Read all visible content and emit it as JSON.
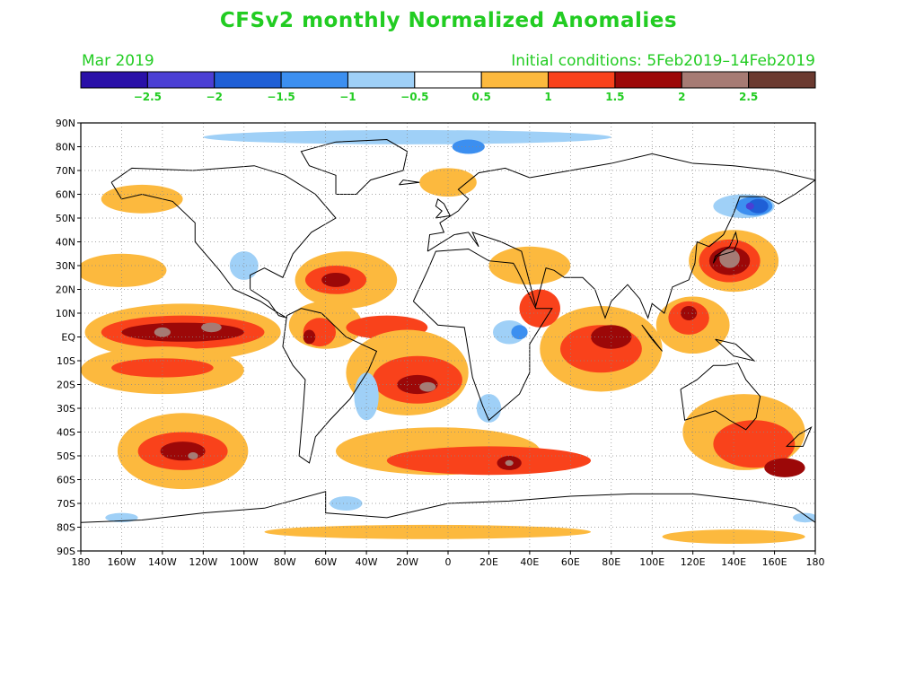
{
  "header": {
    "title": "CFSv2 monthly Normalized Anomalies",
    "month_label": "Mar 2019",
    "init_label": "Initial conditions: 5Feb2019–14Feb2019",
    "text_color": "#22cc22"
  },
  "colorbar": {
    "colors": [
      "#2a10a8",
      "#4b3fd4",
      "#1f5fd6",
      "#3c8ff0",
      "#9fd0f7",
      "#ffffff",
      "#fcb93e",
      "#f9421b",
      "#9c0808",
      "#a67b74",
      "#6b3a30"
    ],
    "labels": [
      "−2.5",
      "−2",
      "−1.5",
      "−1",
      "−0.5",
      "0.5",
      "1",
      "1.5",
      "2",
      "2.5"
    ]
  },
  "map": {
    "projection": "equirectangular",
    "lon_range": [
      -180,
      180
    ],
    "lat_range": [
      -90,
      90
    ],
    "lat_labels": [
      "90N",
      "80N",
      "70N",
      "60N",
      "50N",
      "40N",
      "30N",
      "20N",
      "10N",
      "EQ",
      "10S",
      "20S",
      "30S",
      "40S",
      "50S",
      "60S",
      "70S",
      "80S",
      "90S"
    ],
    "lon_labels": [
      "180",
      "160W",
      "140W",
      "120W",
      "100W",
      "80W",
      "60W",
      "40W",
      "20W",
      "0",
      "20E",
      "40E",
      "60E",
      "80E",
      "100E",
      "120E",
      "140E",
      "160E",
      "180"
    ],
    "gridlines": "dotted",
    "anomaly_regions": [
      {
        "lon": -130,
        "lat": 2,
        "rx": 48,
        "ry": 12,
        "level": 0.6
      },
      {
        "lon": -130,
        "lat": 2,
        "rx": 40,
        "ry": 7,
        "level": 1.2
      },
      {
        "lon": -130,
        "lat": 2,
        "rx": 30,
        "ry": 4,
        "level": 1.6
      },
      {
        "lon": -140,
        "lat": 2,
        "rx": 4,
        "ry": 2,
        "level": 2.2
      },
      {
        "lon": -116,
        "lat": 4,
        "rx": 5,
        "ry": 2,
        "level": 2.2
      },
      {
        "lon": -160,
        "lat": 28,
        "rx": 22,
        "ry": 7,
        "level": 0.6
      },
      {
        "lon": -140,
        "lat": -14,
        "rx": 40,
        "ry": 10,
        "level": 0.6
      },
      {
        "lon": -140,
        "lat": -13,
        "rx": 25,
        "ry": 4,
        "level": 1.2
      },
      {
        "lon": -130,
        "lat": -48,
        "rx": 32,
        "ry": 16,
        "level": 0.6
      },
      {
        "lon": -130,
        "lat": -48,
        "rx": 22,
        "ry": 8,
        "level": 1.2
      },
      {
        "lon": -130,
        "lat": -48,
        "rx": 11,
        "ry": 4,
        "level": 1.6
      },
      {
        "lon": -125,
        "lat": -50,
        "rx": 2.5,
        "ry": 1.5,
        "level": 2.2
      },
      {
        "lon": -150,
        "lat": 58,
        "rx": 20,
        "ry": 6,
        "level": 0.6
      },
      {
        "lon": -50,
        "lat": 24,
        "rx": 25,
        "ry": 12,
        "level": 0.6
      },
      {
        "lon": -55,
        "lat": 24,
        "rx": 15,
        "ry": 6,
        "level": 1.2
      },
      {
        "lon": -55,
        "lat": 24,
        "rx": 7,
        "ry": 3,
        "level": 1.6
      },
      {
        "lon": -60,
        "lat": 5,
        "rx": 18,
        "ry": 10,
        "level": 0.6
      },
      {
        "lon": -63,
        "lat": 2,
        "rx": 8,
        "ry": 6,
        "level": 1.2
      },
      {
        "lon": -68,
        "lat": 0,
        "rx": 3,
        "ry": 3,
        "level": 1.6
      },
      {
        "lon": -30,
        "lat": 4,
        "rx": 20,
        "ry": 5,
        "level": 1.2
      },
      {
        "lon": -20,
        "lat": -15,
        "rx": 30,
        "ry": 18,
        "level": 0.6
      },
      {
        "lon": -15,
        "lat": -18,
        "rx": 22,
        "ry": 10,
        "level": 1.2
      },
      {
        "lon": -15,
        "lat": -20,
        "rx": 10,
        "ry": 4,
        "level": 1.6
      },
      {
        "lon": -10,
        "lat": -21,
        "rx": 4,
        "ry": 2,
        "level": 2.2
      },
      {
        "lon": -5,
        "lat": -48,
        "rx": 50,
        "ry": 10,
        "level": 0.6
      },
      {
        "lon": 20,
        "lat": -52,
        "rx": 50,
        "ry": 6,
        "level": 1.2
      },
      {
        "lon": 30,
        "lat": -53,
        "rx": 6,
        "ry": 3,
        "level": 1.6
      },
      {
        "lon": 30,
        "lat": -53,
        "rx": 2,
        "ry": 1.2,
        "level": 2.2
      },
      {
        "lon": 75,
        "lat": -5,
        "rx": 30,
        "ry": 18,
        "level": 0.6
      },
      {
        "lon": 75,
        "lat": -5,
        "rx": 20,
        "ry": 10,
        "level": 1.2
      },
      {
        "lon": 80,
        "lat": 0,
        "rx": 10,
        "ry": 5,
        "level": 1.6
      },
      {
        "lon": 120,
        "lat": 5,
        "rx": 18,
        "ry": 12,
        "level": 0.6
      },
      {
        "lon": 118,
        "lat": 8,
        "rx": 10,
        "ry": 7,
        "level": 1.2
      },
      {
        "lon": 118,
        "lat": 10,
        "rx": 4,
        "ry": 3,
        "level": 1.6
      },
      {
        "lon": 140,
        "lat": 32,
        "rx": 22,
        "ry": 13,
        "level": 0.6
      },
      {
        "lon": 138,
        "lat": 32,
        "rx": 15,
        "ry": 9,
        "level": 1.2
      },
      {
        "lon": 138,
        "lat": 32,
        "rx": 10,
        "ry": 6,
        "level": 1.6
      },
      {
        "lon": 138,
        "lat": 33,
        "rx": 5,
        "ry": 4,
        "level": 2.2
      },
      {
        "lon": 145,
        "lat": -40,
        "rx": 30,
        "ry": 16,
        "level": 0.6
      },
      {
        "lon": 150,
        "lat": -45,
        "rx": 20,
        "ry": 10,
        "level": 1.2
      },
      {
        "lon": 165,
        "lat": -55,
        "rx": 10,
        "ry": 4,
        "level": 1.6
      },
      {
        "lon": 40,
        "lat": 30,
        "rx": 20,
        "ry": 8,
        "level": 0.6
      },
      {
        "lon": 45,
        "lat": 12,
        "rx": 10,
        "ry": 8,
        "level": 1.2
      },
      {
        "lon": 0,
        "lat": 65,
        "rx": 14,
        "ry": 6,
        "level": 0.6
      },
      {
        "lon": -10,
        "lat": -82,
        "rx": 80,
        "ry": 3,
        "level": 0.6
      },
      {
        "lon": 140,
        "lat": -84,
        "rx": 35,
        "ry": 3,
        "level": 0.6
      },
      {
        "lon": 145,
        "lat": 55,
        "rx": 15,
        "ry": 5,
        "level": -0.6
      },
      {
        "lon": 150,
        "lat": 55,
        "rx": 9,
        "ry": 4,
        "level": -1.2
      },
      {
        "lon": 152,
        "lat": 55,
        "rx": 5,
        "ry": 3,
        "level": -1.6
      },
      {
        "lon": 148,
        "lat": 55,
        "rx": 2,
        "ry": 1.5,
        "level": -2.2
      },
      {
        "lon": -20,
        "lat": 84,
        "rx": 100,
        "ry": 3,
        "level": -0.6
      },
      {
        "lon": 10,
        "lat": 80,
        "rx": 8,
        "ry": 3,
        "level": -1.2
      },
      {
        "lon": -100,
        "lat": 30,
        "rx": 7,
        "ry": 6,
        "level": -0.6
      },
      {
        "lon": 30,
        "lat": 2,
        "rx": 8,
        "ry": 5,
        "level": -0.6
      },
      {
        "lon": 35,
        "lat": 2,
        "rx": 4,
        "ry": 3,
        "level": -1.2
      },
      {
        "lon": -40,
        "lat": -25,
        "rx": 6,
        "ry": 10,
        "level": -0.6
      },
      {
        "lon": -160,
        "lat": -76,
        "rx": 8,
        "ry": 2,
        "level": -0.6
      },
      {
        "lon": -50,
        "lat": -70,
        "rx": 8,
        "ry": 3,
        "level": -0.6
      },
      {
        "lon": 20,
        "lat": -30,
        "rx": 6,
        "ry": 6,
        "level": -0.6
      },
      {
        "lon": 175,
        "lat": -76,
        "rx": 6,
        "ry": 2,
        "level": -0.6
      }
    ]
  }
}
